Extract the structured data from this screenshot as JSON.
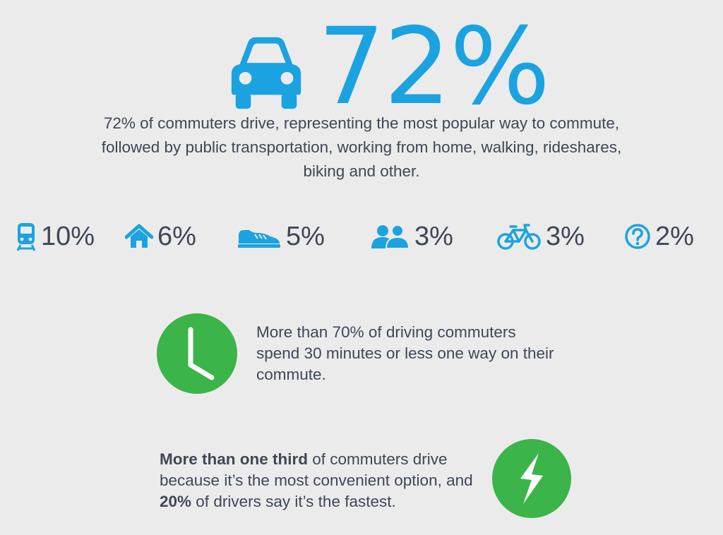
{
  "hero": {
    "icon": "car-icon",
    "percent": "72%"
  },
  "intro": {
    "text": "72% of commuters drive, representing the most popular way to commute, followed by public transportation, working from home, walking, rideshares, biking and other."
  },
  "modes": [
    {
      "icon": "train-icon",
      "percent": "10%"
    },
    {
      "icon": "home-icon",
      "percent": "6%"
    },
    {
      "icon": "shoe-icon",
      "percent": "5%"
    },
    {
      "icon": "people-icon",
      "percent": "3%"
    },
    {
      "icon": "bicycle-icon",
      "percent": "3%"
    },
    {
      "icon": "question-icon",
      "percent": "2%"
    }
  ],
  "stat_clock": {
    "icon": "clock-icon",
    "text": "More than 70% of driving commuters spend 30 minutes or less one way on their commute."
  },
  "stat_fast": {
    "icon": "lightning-icon",
    "bold_1": "More than one third",
    "text_1": " of commuters drive because it’s the most convenient option, and ",
    "bold_2": "20%",
    "text_2": " of drivers say it’s the fastest."
  },
  "colors": {
    "background": "#ecebec",
    "accent_blue": "#1aa3e0",
    "accent_green": "#3bb44a",
    "text": "#3e4756"
  }
}
